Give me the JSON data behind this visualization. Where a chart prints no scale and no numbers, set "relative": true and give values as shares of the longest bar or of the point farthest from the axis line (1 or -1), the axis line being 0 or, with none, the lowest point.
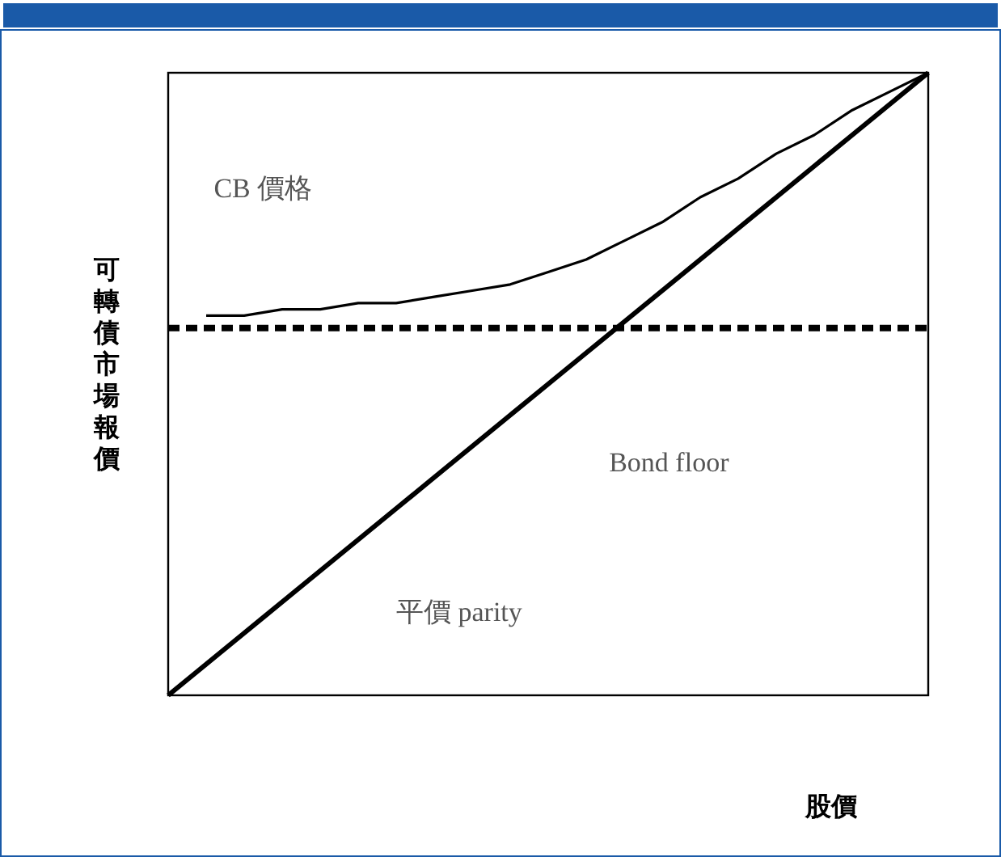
{
  "chart_data": {
    "type": "line",
    "relative": true,
    "ylabel": "可轉債市場報價",
    "xlabel": "股價",
    "categories": [
      null,
      null,
      null,
      null,
      null,
      null,
      null,
      null,
      null,
      null,
      null,
      null,
      null,
      null,
      null,
      null,
      null,
      null,
      null,
      null,
      null
    ],
    "series": [
      {
        "color": "#000000",
        "line_style": "solid",
        "values": [
          null,
          0.61,
          0.61,
          0.62,
          0.62,
          0.63,
          0.63,
          0.64,
          0.65,
          0.66,
          0.68,
          0.7,
          0.73,
          0.76,
          0.8,
          0.83,
          0.87,
          0.9,
          0.94,
          0.97,
          1.0
        ]
      },
      {
        "color": "#000000",
        "line_style": "dashed",
        "values": [
          0.59,
          0.59,
          0.59,
          0.59,
          0.59,
          0.59,
          0.59,
          0.59,
          0.59,
          0.59,
          0.59,
          0.59,
          0.59,
          0.59,
          0.59,
          0.59,
          0.59,
          0.59,
          0.59,
          0.59,
          0.59
        ]
      },
      {
        "color": "#000000",
        "line_style": "solid",
        "values": [
          0,
          0.05,
          0.1,
          0.15,
          0.2,
          0.25,
          0.3,
          0.35,
          0.4,
          0.45,
          0.5,
          0.55,
          0.6,
          0.65,
          0.7,
          0.75,
          0.8,
          0.85,
          0.9,
          0.95,
          1.0
        ]
      }
    ],
    "annotations": [
      "CB 價格",
      "Bond floor",
      "平價 parity"
    ],
    "legend": false,
    "marker": "none"
  }
}
